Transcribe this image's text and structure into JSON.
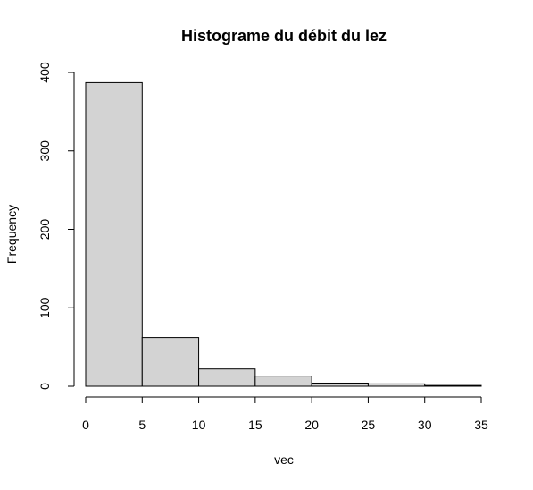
{
  "chart_data": {
    "type": "bar",
    "title": "Histograme du débit du lez",
    "xlabel": "vec",
    "ylabel": "Frequency",
    "bins": [
      {
        "from": 0,
        "to": 5,
        "count": 387
      },
      {
        "from": 5,
        "to": 10,
        "count": 62
      },
      {
        "from": 10,
        "to": 15,
        "count": 22
      },
      {
        "from": 15,
        "to": 20,
        "count": 13
      },
      {
        "from": 20,
        "to": 25,
        "count": 4
      },
      {
        "from": 25,
        "to": 30,
        "count": 3
      },
      {
        "from": 30,
        "to": 35,
        "count": 1
      }
    ],
    "xlim": [
      0,
      35
    ],
    "ylim": [
      0,
      400
    ],
    "x_ticks": [
      "0",
      "5",
      "10",
      "15",
      "20",
      "25",
      "30",
      "35"
    ],
    "y_ticks": [
      "0",
      "100",
      "200",
      "300",
      "400"
    ],
    "grid": false,
    "bar_fill": "#d3d3d3",
    "bar_stroke": "#000000"
  }
}
